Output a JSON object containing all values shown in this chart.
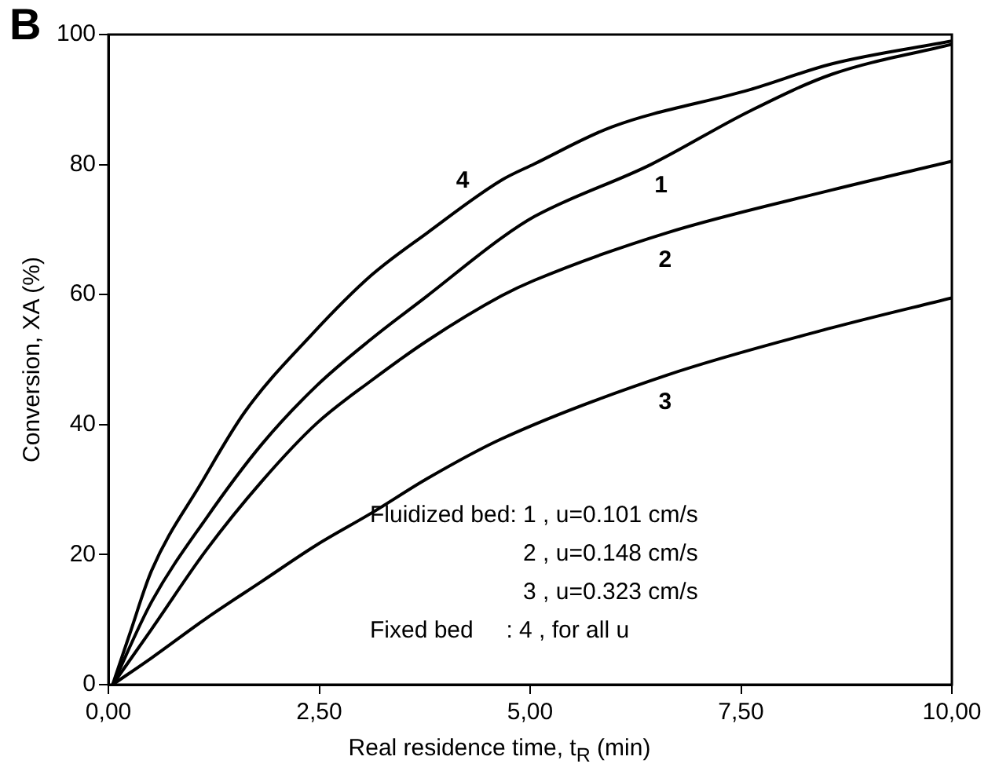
{
  "chart_data": {
    "type": "line",
    "title": "B",
    "xlabel": "Real residence time, t$_{R}$ (min)",
    "ylabel": "Conversion, XA (%)",
    "xlim": [
      0,
      10
    ],
    "ylim": [
      0,
      100
    ],
    "xticks": [
      {
        "value": 0,
        "label": "0,00"
      },
      {
        "value": 2.5,
        "label": "2,50"
      },
      {
        "value": 5,
        "label": "5,00"
      },
      {
        "value": 7.5,
        "label": "7,50"
      },
      {
        "value": 10,
        "label": "10,00"
      }
    ],
    "yticks": [
      0,
      20,
      40,
      60,
      80,
      100
    ],
    "grid": false,
    "legend": false,
    "marker": "none",
    "line_style": "solid",
    "series": [
      {
        "name": "1",
        "color": "#000000",
        "x": [
          0.05,
          0.51,
          1.16,
          1.82,
          2.47,
          3.12,
          3.78,
          4.66,
          5.05,
          6.43,
          7.6,
          8.58,
          10
        ],
        "values": [
          0,
          12.7,
          25.6,
          37,
          46,
          53.2,
          59.8,
          68.7,
          72,
          80,
          88.2,
          93.9,
          98.5
        ]
      },
      {
        "name": "2",
        "color": "#000000",
        "x": [
          0.05,
          0.51,
          1.16,
          1.82,
          2.47,
          3.12,
          3.78,
          4.66,
          5.05,
          6.62,
          8.58,
          10
        ],
        "values": [
          0,
          8.5,
          20.7,
          31.3,
          40.2,
          46.8,
          52.9,
          59.8,
          62.2,
          69.5,
          76.1,
          80.5
        ]
      },
      {
        "name": "3",
        "color": "#000000",
        "x": [
          0.05,
          0.51,
          1.16,
          1.82,
          2.47,
          3.12,
          3.78,
          4.66,
          6.62,
          8.58,
          10
        ],
        "values": [
          0,
          4.1,
          10.2,
          15.9,
          21.5,
          26.4,
          31.7,
          37.8,
          47.6,
          54.9,
          59.5
        ]
      },
      {
        "name": "4",
        "color": "#000000",
        "x": [
          0.05,
          0.25,
          0.51,
          1.1,
          1.62,
          2.4,
          3.12,
          3.78,
          4.66,
          5.05,
          5.97,
          7.6,
          8.58,
          10
        ],
        "values": [
          0,
          7.7,
          17.5,
          31,
          42,
          53.7,
          63,
          69.5,
          77.6,
          80.1,
          85.8,
          91.5,
          95.5,
          99
        ]
      }
    ],
    "annotations": [
      "Fluidized bed: 1 , u=0.101 cm/s",
      "2 , u=0.148 cm/s",
      "3 , u=0.323 cm/s",
      "Fixed bed     : 4 , for all u"
    ]
  }
}
